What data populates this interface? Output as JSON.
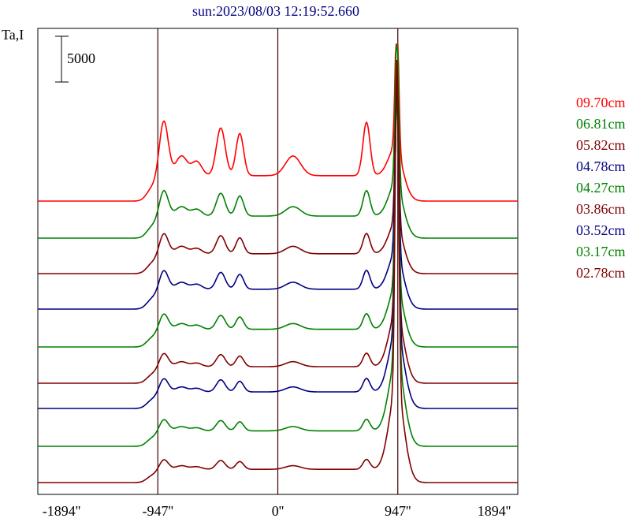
{
  "chart_data": {
    "type": "line",
    "title": "sun:2023/08/03 12:19:52.660",
    "ylabel": "Ta,I",
    "scale_bar_label": "5000",
    "scale_bar_value": 5000,
    "xlim": [
      -1894,
      1894
    ],
    "x_ticks": [
      {
        "value": -1894,
        "label": "-1894''"
      },
      {
        "value": -947,
        "label": "-947''"
      },
      {
        "value": 0,
        "label": "0''"
      },
      {
        "value": 947,
        "label": "947''"
      },
      {
        "value": 1894,
        "label": "1894''"
      }
    ],
    "vertical_markers": [
      -947,
      0,
      947
    ],
    "y_units_per_px": 125,
    "series": [
      {
        "name": "09.70cm",
        "color": "#ff0000",
        "offset": 8240,
        "scale": 1.15,
        "sun": 1.55,
        "peak": 18260,
        "baseline": 0,
        "limb": 0.9
      },
      {
        "name": "06.81cm",
        "color": "#008000",
        "offset": 13160,
        "scale": 1.0,
        "sun": 0.85,
        "peak": 12400,
        "baseline": 0,
        "limb": 0.9
      },
      {
        "name": "05.82cm",
        "color": "#800000",
        "offset": 18190,
        "scale": 0.9,
        "sun": 0.75,
        "peak": 7400,
        "baseline": 0,
        "limb": 0.9
      },
      {
        "name": "04.78cm",
        "color": "#000080",
        "offset": 23090,
        "scale": 0.9,
        "sun": 0.7,
        "peak": 2300,
        "baseline": 0,
        "limb": 0.9
      },
      {
        "name": "04.27cm",
        "color": "#008000",
        "offset": 28020,
        "scale": 0.8,
        "sun": 0.65,
        "peak": -2590,
        "baseline": 0,
        "limb": 0.9
      },
      {
        "name": "03.86cm",
        "color": "#800000",
        "offset": 32950,
        "scale": 0.75,
        "sun": 0.6,
        "peak": -7600,
        "baseline": 0,
        "limb": 0.9
      },
      {
        "name": "03.52cm",
        "color": "#000080",
        "offset": 35890,
        "scale": 0.75,
        "sun": 0.6,
        "peak": -12500,
        "baseline": 0,
        "limb": 0.9
      },
      {
        "name": "03.17cm",
        "color": "#008000",
        "offset": 42560,
        "scale": 0.7,
        "sun": 0.55,
        "peak": -17400,
        "baseline": 0,
        "limb": 0.9
      },
      {
        "name": "02.78cm",
        "color": "#800000",
        "offset": 47500,
        "scale": 0.6,
        "sun": 0.55,
        "peak": -22400,
        "baseline": 0,
        "limb": 0.9
      }
    ]
  }
}
